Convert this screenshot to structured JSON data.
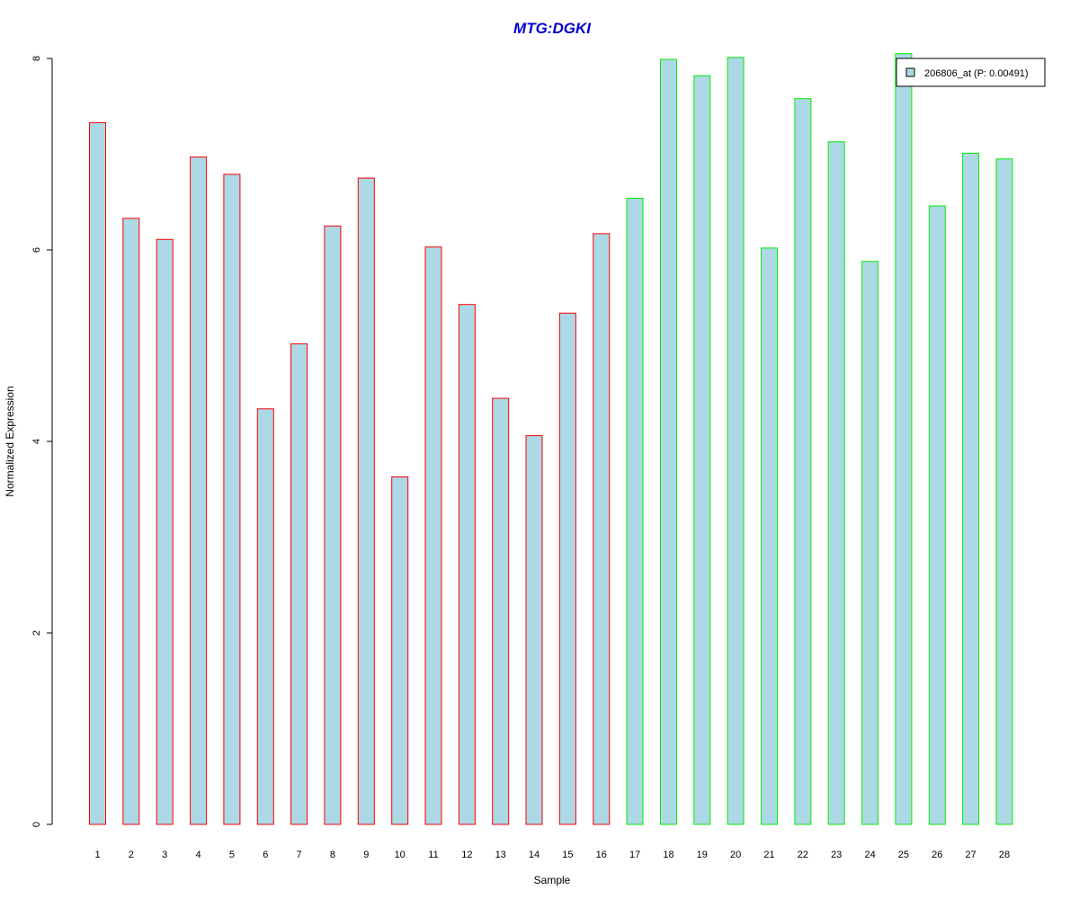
{
  "chart_data": {
    "type": "bar",
    "title": "MTG:DGKI",
    "title_color": "#0000cc",
    "xlabel": "Sample",
    "ylabel": "Normalized Expression",
    "ylim": [
      0,
      8
    ],
    "yticks": [
      "0",
      "2",
      "4",
      "6",
      "8"
    ],
    "categories": [
      "1",
      "2",
      "3",
      "4",
      "5",
      "6",
      "7",
      "8",
      "9",
      "10",
      "11",
      "12",
      "13",
      "14",
      "15",
      "16",
      "17",
      "18",
      "19",
      "20",
      "21",
      "22",
      "23",
      "24",
      "25",
      "26",
      "27",
      "28"
    ],
    "values": [
      7.33,
      6.33,
      6.11,
      6.97,
      6.79,
      4.34,
      5.02,
      6.25,
      6.75,
      3.63,
      6.03,
      5.43,
      4.45,
      4.06,
      5.34,
      6.17,
      6.54,
      7.99,
      7.82,
      8.01,
      6.02,
      7.58,
      7.13,
      5.88,
      8.05,
      6.46,
      7.01,
      6.95
    ],
    "groups": [
      "a",
      "a",
      "a",
      "a",
      "a",
      "a",
      "a",
      "a",
      "a",
      "a",
      "a",
      "a",
      "a",
      "a",
      "a",
      "a",
      "b",
      "b",
      "b",
      "b",
      "b",
      "b",
      "b",
      "b",
      "b",
      "b",
      "b",
      "b"
    ],
    "fill_color": "#add8e6",
    "group_border_colors": {
      "a": "#ff0000",
      "b": "#00ee00"
    },
    "legend": {
      "label": "206806_at (P: 0.00491)",
      "position": "top-right"
    },
    "grid": false
  }
}
